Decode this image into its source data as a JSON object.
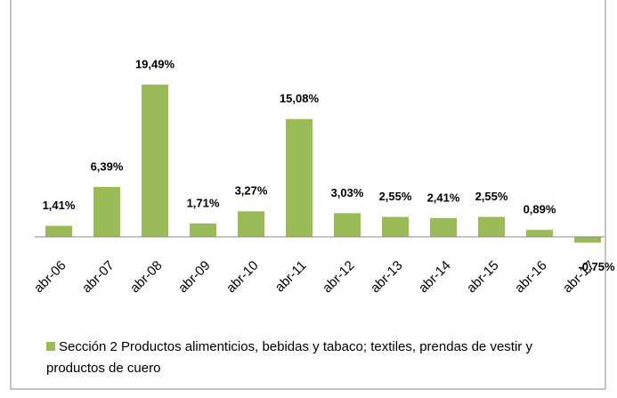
{
  "chart_data": {
    "type": "bar",
    "categories": [
      "abr-06",
      "abr-07",
      "abr-08",
      "abr-09",
      "abr-10",
      "abr-11",
      "abr-12",
      "abr-13",
      "abr-14",
      "abr-15",
      "abr-16",
      "abr-17"
    ],
    "series": [
      {
        "name": "Sección 2 Productos alimenticios, bebidas y tabaco; textiles, prendas de vestir y productos de cuero",
        "color": "#9bbb59",
        "values": [
          1.41,
          6.39,
          19.49,
          1.71,
          3.27,
          15.08,
          3.03,
          2.55,
          2.41,
          2.55,
          0.89,
          -0.75
        ],
        "value_labels": [
          "1,41%",
          "6,39%",
          "19,49%",
          "1,71%",
          "3,27%",
          "15,08%",
          "3,03%",
          "2,55%",
          "2,41%",
          "2,55%",
          "0,89%",
          "-0,75%"
        ]
      }
    ],
    "ylim": [
      -2,
      22
    ]
  }
}
